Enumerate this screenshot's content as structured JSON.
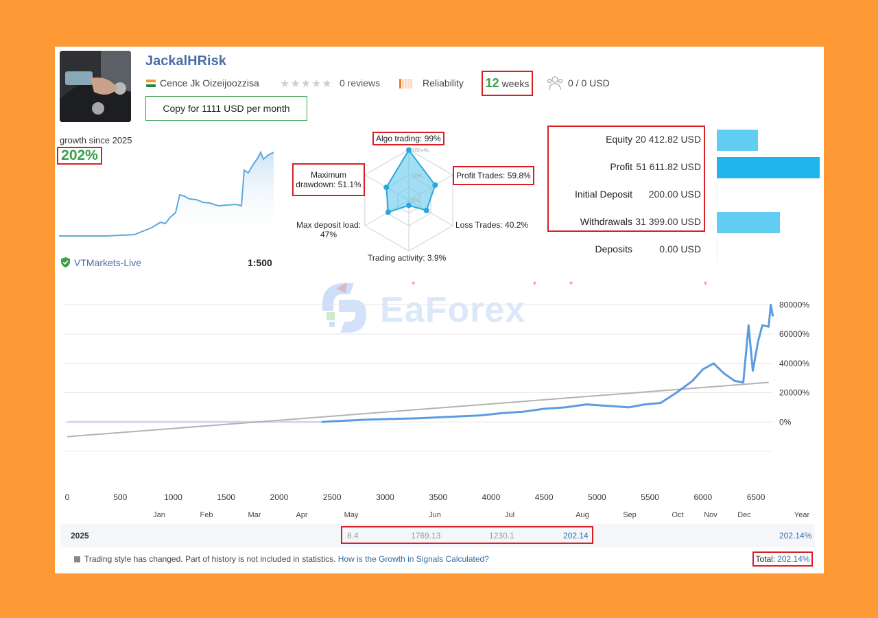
{
  "profile": {
    "name": "JackalHRisk",
    "country": "Cence Jk Oizeijoozzisa",
    "reviews": "0 reviews",
    "reliability": "Reliability",
    "weeks_num": "12",
    "weeks_label": "weeks",
    "subscribers": "0 / 0 USD",
    "copy_button": "Copy for 1111 USD per month",
    "rating_stars": 0
  },
  "growth": {
    "label": "growth since 2025",
    "value": "202%",
    "broker": "VTMarkets-Live",
    "leverage": "1:500"
  },
  "radar": {
    "algo": "Algo trading: 99%",
    "max_dd_1": "Maximum",
    "max_dd_2": "drawdown: 51.1%",
    "profit_trades": "Profit Trades: 59.8%",
    "loss_trades": "Loss Trades: 40.2%",
    "max_load_1": "Max deposit load:",
    "max_load_2": "47%",
    "activity": "Trading activity: 3.9%",
    "ring_100": "100+%",
    "ring_50": "50%",
    "ring_0": "0%",
    "values": [
      0.99,
      0.598,
      0.402,
      0.039,
      0.47,
      0.511
    ]
  },
  "stats": [
    {
      "name": "Equity",
      "value": "20 412.82 USD",
      "fraction": 0.4
    },
    {
      "name": "Profit",
      "value": "51 611.82 USD",
      "fraction": 1.0
    },
    {
      "name": "Initial Deposit",
      "value": "200.00 USD",
      "fraction": 0.004
    },
    {
      "name": "Withdrawals",
      "value": "31 399.00 USD",
      "fraction": 0.61
    },
    {
      "name": "Deposits",
      "value": "0.00 USD",
      "fraction": 0.0
    }
  ],
  "watermark": "EaForex",
  "chart_data": {
    "type": "line",
    "x_ticks": [
      "0",
      "500",
      "1000",
      "1500",
      "2000",
      "2500",
      "3000",
      "3500",
      "4000",
      "4500",
      "5000",
      "5500",
      "6000",
      "6500"
    ],
    "y_ticks": [
      "80000%",
      "60000%",
      "40000%",
      "20000%",
      "0%"
    ],
    "months": [
      "Jan",
      "Feb",
      "Mar",
      "Apr",
      "May",
      "Jun",
      "Jul",
      "Aug",
      "Sep",
      "Oct",
      "Nov",
      "Dec",
      "Year"
    ],
    "xlim": [
      0,
      6700
    ],
    "ylim": [
      -20000,
      82000
    ],
    "series": [
      {
        "x": [
          0,
          2400,
          2500,
          2800,
          3000,
          3300,
          3600,
          3900,
          4100,
          4300,
          4500,
          4700,
          4900,
          5100,
          5300,
          5450,
          5600,
          5750,
          5900,
          6000,
          6100,
          6200,
          6300,
          6380,
          6430,
          6470,
          6520,
          6560,
          6620,
          6640,
          6660
        ],
        "y": [
          0,
          0,
          500,
          1500,
          2000,
          2500,
          3500,
          4500,
          6000,
          7000,
          9000,
          10000,
          12000,
          11000,
          10000,
          12000,
          13000,
          20000,
          28000,
          36000,
          40000,
          33000,
          28000,
          27000,
          66000,
          35000,
          55000,
          66000,
          65000,
          80000,
          72000
        ]
      },
      {
        "x": [
          0,
          6620
        ],
        "y": [
          -10000,
          27000
        ]
      }
    ]
  },
  "year_row": {
    "year": "2025",
    "m1": "8.4",
    "m2": "1769.13",
    "m3": "1230.1",
    "m4": "202.14",
    "total": "202.14%"
  },
  "footer": {
    "note": "Trading style has changed. Part of history is not included in statistics.",
    "link": "How is the Growth in Signals Calculated?",
    "total_label": "Total:",
    "total_value": "202.14%"
  },
  "colors": {
    "accent": "#4a6ea8",
    "green": "#3aa04a",
    "highlight": "#d81f26",
    "line": "#5b9be2",
    "bar_light": "#62cdf3",
    "bar_dark": "#1fb5ec"
  }
}
